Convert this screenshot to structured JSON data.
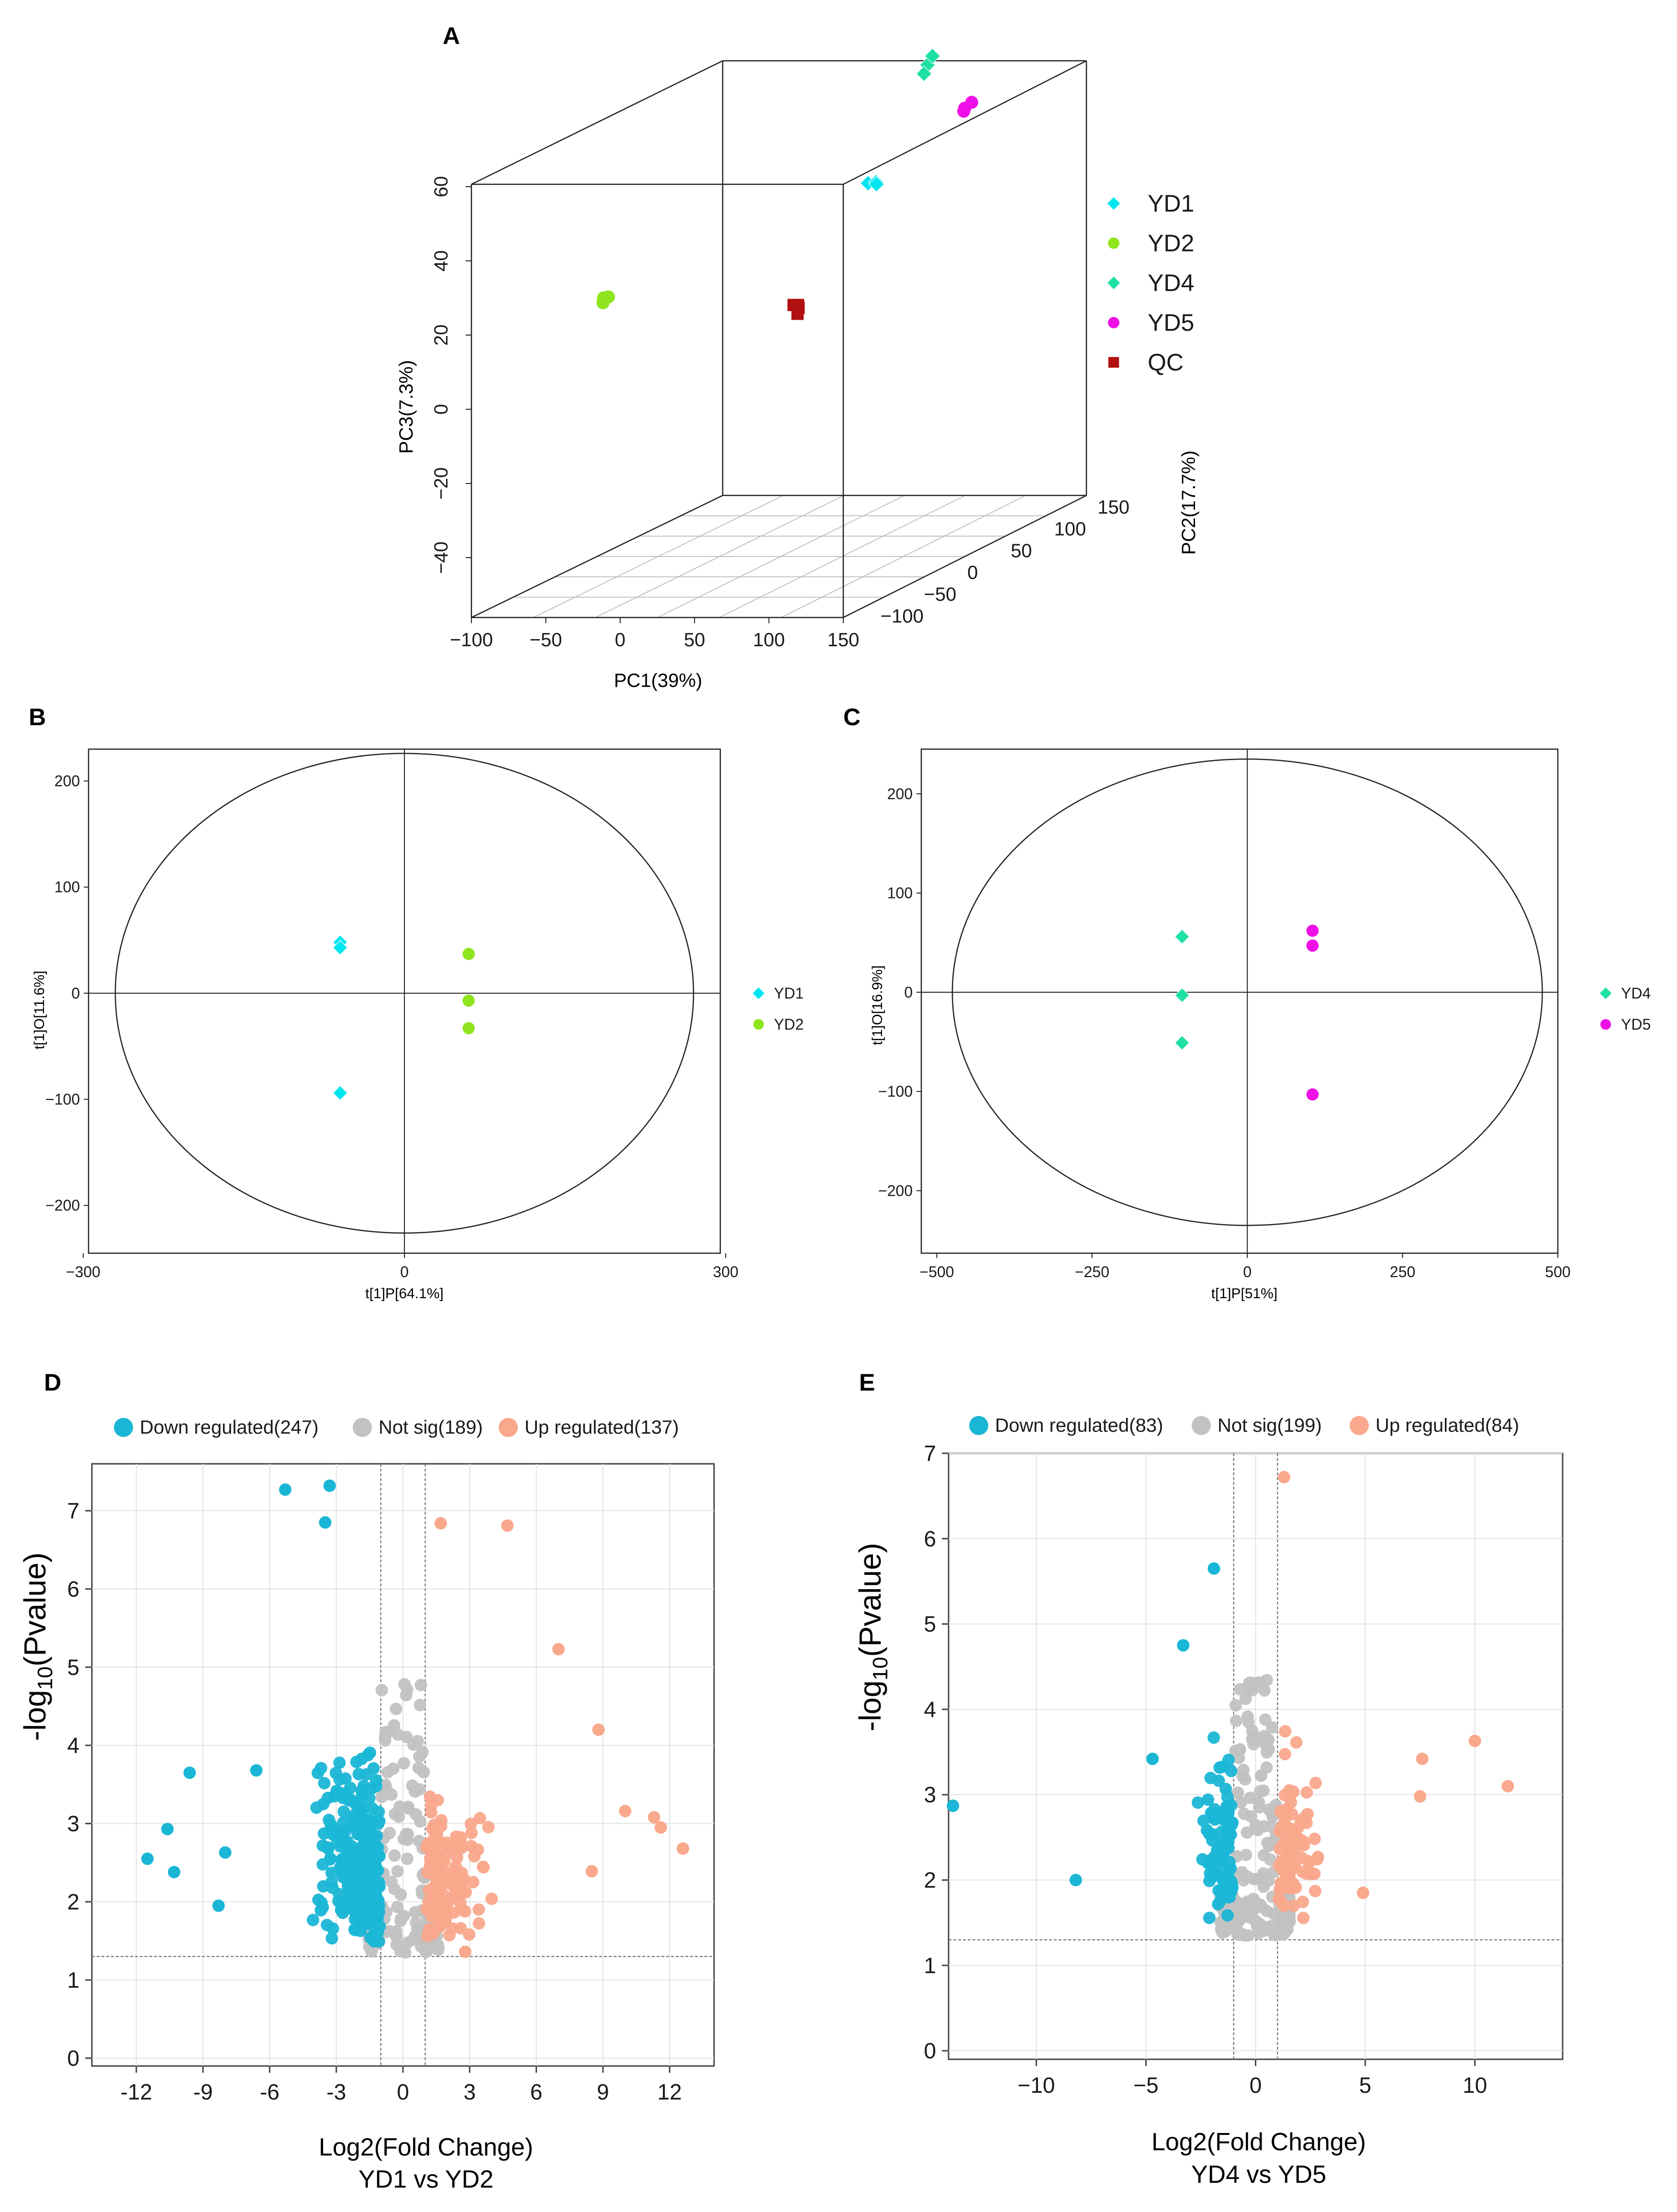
{
  "panels": {
    "A": "A",
    "B": "B",
    "C": "C",
    "D": "D",
    "E": "E"
  },
  "colors": {
    "cyan": "#00e6f0",
    "yellowgreen": "#8ee51e",
    "aquamarine": "#1ee0a4",
    "magenta": "#ee10e6",
    "darkred": "#b01010",
    "down": "#1ab6d6",
    "notsig": "#c2c2c2",
    "up": "#f9a88c"
  },
  "chart_data": [
    {
      "id": "A",
      "type": "scatter",
      "subtype": "3d-pca",
      "xlabel": "PC1(39%)",
      "ylabel": "PC3(7.3%)",
      "zlabel": "PC2(17.7%)",
      "x_ticks": [
        "−100",
        "−50",
        "0",
        "50",
        "100",
        "150"
      ],
      "y_ticks": [
        "60",
        "40",
        "20",
        "0",
        "−20",
        "−40"
      ],
      "z_ticks": [
        "−100",
        "−50",
        "0",
        "50",
        "100",
        "150"
      ],
      "legend": [
        {
          "label": "YD1",
          "marker": "diamond",
          "color": "#00e6f0"
        },
        {
          "label": "YD2",
          "marker": "circle",
          "color": "#8ee51e"
        },
        {
          "label": "YD4",
          "marker": "diamond",
          "color": "#1ee0a4"
        },
        {
          "label": "YD5",
          "marker": "circle",
          "color": "#ee10e6"
        },
        {
          "label": "QC",
          "marker": "square",
          "color": "#b01010"
        }
      ],
      "groups": [
        {
          "name": "YD1",
          "points": [
            [
              18,
              120,
              33
            ],
            [
              22,
              122,
              33
            ],
            [
              25,
              118,
              33
            ]
          ]
        },
        {
          "name": "YD2",
          "points": [
            [
              -72,
              -10,
              20
            ],
            [
              -71,
              -12,
              19
            ],
            [
              -70,
              -8,
              20
            ]
          ]
        },
        {
          "name": "YD4",
          "points": [
            [
              85,
              80,
              68
            ],
            [
              87,
              82,
              70
            ],
            [
              84,
              78,
              66
            ]
          ]
        },
        {
          "name": "YD5",
          "points": [
            [
              108,
              82,
              56
            ],
            [
              112,
              84,
              58
            ],
            [
              110,
              80,
              57
            ]
          ]
        },
        {
          "name": "QC",
          "points": [
            [
              22,
              40,
              12
            ],
            [
              24,
              42,
              11
            ],
            [
              26,
              38,
              10
            ],
            [
              25,
              40,
              12
            ]
          ]
        }
      ]
    },
    {
      "id": "B",
      "type": "scatter",
      "subtype": "opls-da",
      "xlabel": "t[1]P[64.1%]",
      "ylabel": "t[1]O[11.6%]",
      "xlim": [
        -295,
        295
      ],
      "ylim": [
        -245,
        230
      ],
      "x_ticks": [
        -300,
        0,
        300
      ],
      "x_tick_labels": [
        "−300",
        "0",
        "300"
      ],
      "y_ticks": [
        200,
        100,
        0,
        -100,
        -200
      ],
      "y_tick_labels": [
        "200",
        "100",
        "0",
        "−100",
        "−200"
      ],
      "ellipse": {
        "rx": 270,
        "ry": 226
      },
      "legend": [
        {
          "label": "YD1",
          "marker": "diamond",
          "color": "#00e6f0"
        },
        {
          "label": "YD2",
          "marker": "circle",
          "color": "#8ee51e"
        }
      ],
      "groups": [
        {
          "name": "YD1",
          "marker": "diamond",
          "color": "#00e6f0",
          "points": [
            [
              -60,
              48
            ],
            [
              -60,
              43
            ],
            [
              -60,
              -94
            ]
          ]
        },
        {
          "name": "YD2",
          "marker": "circle",
          "color": "#8ee51e",
          "points": [
            [
              60,
              37
            ],
            [
              60,
              -7
            ],
            [
              60,
              -33
            ]
          ]
        }
      ]
    },
    {
      "id": "C",
      "type": "scatter",
      "subtype": "opls-da",
      "xlabel": "t[1]P[51%]",
      "ylabel": "t[1]O[16.9%]",
      "xlim": [
        -525,
        500
      ],
      "ylim": [
        -263,
        245
      ],
      "x_ticks": [
        -500,
        -250,
        0,
        250,
        500
      ],
      "x_tick_labels": [
        "−500",
        "−250",
        "0",
        "250",
        "500"
      ],
      "y_ticks": [
        200,
        100,
        0,
        -100,
        -200
      ],
      "y_tick_labels": [
        "200",
        "100",
        "0",
        "−100",
        "−200"
      ],
      "ellipse": {
        "rx": 475,
        "ry": 235
      },
      "legend": [
        {
          "label": "YD4",
          "marker": "diamond",
          "color": "#1ee0a4"
        },
        {
          "label": "YD5",
          "marker": "circle",
          "color": "#ee10e6"
        }
      ],
      "groups": [
        {
          "name": "YD4",
          "marker": "diamond",
          "color": "#1ee0a4",
          "points": [
            [
              -105,
              56
            ],
            [
              -105,
              -3
            ],
            [
              -105,
              -51
            ]
          ]
        },
        {
          "name": "YD5",
          "marker": "circle",
          "color": "#ee10e6",
          "points": [
            [
              105,
              62
            ],
            [
              105,
              47
            ],
            [
              105,
              -103
            ]
          ]
        }
      ]
    },
    {
      "id": "D",
      "type": "scatter",
      "subtype": "volcano",
      "xlabel": "Log2(Fold Change)",
      "xlabel2": "YD1 vs YD2",
      "ylabel_main": "-log",
      "ylabel_sub": "10",
      "ylabel_tail": "(Pvalue)",
      "xlim": [
        -14,
        14
      ],
      "ylim": [
        -0.1,
        7.6
      ],
      "x_ticks": [
        -12,
        -9,
        -6,
        -3,
        0,
        3,
        6,
        9,
        12
      ],
      "x_tick_labels": [
        "-12",
        "-9",
        "-6",
        "-3",
        "0",
        "3",
        "6",
        "9",
        "12"
      ],
      "y_ticks": [
        0,
        1,
        2,
        3,
        4,
        5,
        6,
        7
      ],
      "y_tick_labels": [
        "0",
        "1",
        "2",
        "3",
        "4",
        "5",
        "6",
        "7"
      ],
      "fc_threshold": 1,
      "p_threshold": 1.3,
      "legend": [
        {
          "label": "Down regulated(247)",
          "color": "#1ab6d6"
        },
        {
          "label": "Not sig(189)",
          "color": "#c2c2c2"
        },
        {
          "label": "Up regulated(137)",
          "color": "#f9a88c"
        }
      ],
      "counts": {
        "down": 247,
        "notsig": 189,
        "up": 137
      },
      "highlight_points": {
        "down": [
          [
            -5.3,
            7.27
          ],
          [
            -3.3,
            7.32
          ],
          [
            -3.5,
            6.85
          ],
          [
            -11.5,
            2.55
          ],
          [
            -10.6,
            2.93
          ],
          [
            -10.3,
            2.38
          ],
          [
            -9.6,
            3.65
          ],
          [
            -8.3,
            1.95
          ],
          [
            -8.0,
            2.63
          ],
          [
            -6.6,
            3.68
          ]
        ],
        "up": [
          [
            1.7,
            6.84
          ],
          [
            4.7,
            6.81
          ],
          [
            7.0,
            5.23
          ],
          [
            8.8,
            4.2
          ],
          [
            11.3,
            3.08
          ],
          [
            12.6,
            2.68
          ],
          [
            11.6,
            2.95
          ],
          [
            10.0,
            3.16
          ],
          [
            8.5,
            2.39
          ],
          [
            2.8,
            1.36
          ]
        ]
      }
    },
    {
      "id": "E",
      "type": "scatter",
      "subtype": "volcano",
      "xlabel": "Log2(Fold Change)",
      "xlabel2": "YD4 vs YD5",
      "ylabel_main": "-log",
      "ylabel_sub": "10",
      "ylabel_tail": "(Pvalue)",
      "xlim": [
        -14,
        14
      ],
      "ylim": [
        -0.1,
        7.0
      ],
      "x_ticks": [
        -10,
        -5,
        0,
        5,
        10
      ],
      "x_tick_labels": [
        "−10",
        "−5",
        "0",
        "5",
        "10"
      ],
      "y_ticks": [
        0,
        1,
        2,
        3,
        4,
        5,
        6,
        7
      ],
      "y_tick_labels": [
        "0",
        "1",
        "2",
        "3",
        "4",
        "5",
        "6",
        "7"
      ],
      "fc_threshold": 1,
      "p_threshold": 1.3,
      "legend": [
        {
          "label": "Down regulated(83)",
          "color": "#1ab6d6"
        },
        {
          "label": "Not sig(199)",
          "color": "#c2c2c2"
        },
        {
          "label": "Up regulated(84)",
          "color": "#f9a88c"
        }
      ],
      "counts": {
        "down": 83,
        "notsig": 199,
        "up": 84
      },
      "highlight_points": {
        "down": [
          [
            -13.8,
            2.87
          ],
          [
            -8.2,
            2.0
          ],
          [
            -1.9,
            5.65
          ],
          [
            -4.7,
            3.42
          ],
          [
            -3.3,
            4.75
          ]
        ],
        "up": [
          [
            1.3,
            6.72
          ],
          [
            10.0,
            3.63
          ],
          [
            11.5,
            3.1
          ],
          [
            7.6,
            3.42
          ],
          [
            7.5,
            2.98
          ],
          [
            4.9,
            1.85
          ]
        ]
      }
    }
  ]
}
